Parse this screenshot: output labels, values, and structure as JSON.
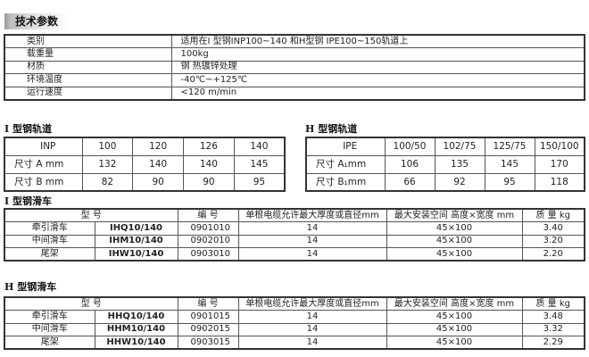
{
  "title": "技术参数",
  "specs": [
    {
      "label": "类别",
      "value": "适用在I 型钢INP100~140 和H型钢 IPE100~150轨道上"
    },
    {
      "label": "载重量",
      "value": "100kg"
    },
    {
      "label": "材质",
      "value": "钢      热镀锌处理"
    },
    {
      "label": "环境温度",
      "value": "-40℃~+125℃"
    },
    {
      "label": "运行速度",
      "value": "<120 m/min"
    }
  ],
  "i_rail": {
    "heading": "I 型钢轨道",
    "rows": [
      [
        "INP",
        "100",
        "120",
        "126",
        "140"
      ],
      [
        "尺寸  A mm",
        "132",
        "140",
        "140",
        "145"
      ],
      [
        "尺寸  B mm",
        "82",
        "90",
        "90",
        "95"
      ]
    ]
  },
  "h_rail": {
    "heading": "H 型钢轨道",
    "rows": [
      [
        "IPE",
        "100/50",
        "102/75",
        "125/75",
        "150/100"
      ],
      [
        "尺寸  A₁mm",
        "106",
        "135",
        "145",
        "170"
      ],
      [
        "尺寸  B₁mm",
        "66",
        "92",
        "95",
        "118"
      ]
    ]
  },
  "headers": {
    "type": "型          号",
    "code": "编    号",
    "cable": "单根电缆允许最大厚度或直径mm",
    "space": "最大安装空间 高度×宽度 mm",
    "mass": "质 量 kg"
  },
  "i_trolley": {
    "heading": "I 型钢滑车",
    "rows": [
      [
        "牵引滑车",
        "IHQ10/140",
        "0901010",
        "14",
        "45×100",
        "3.40"
      ],
      [
        "中间滑车",
        "IHM10/140",
        "0902010",
        "14",
        "45×100",
        "3.20"
      ],
      [
        "尾架",
        "IHW10/140",
        "0903010",
        "14",
        "45×100",
        "2.20"
      ]
    ]
  },
  "h_trolley": {
    "heading": "H 型钢滑车",
    "rows": [
      [
        "牵引滑车",
        "HHQ10/140",
        "0901015",
        "14",
        "45×100",
        "3.48"
      ],
      [
        "中间滑车",
        "HHM10/140",
        "0902015",
        "14",
        "45×100",
        "3.32"
      ],
      [
        "尾架",
        "HHW10/140",
        "0903015",
        "14",
        "45×100",
        "2.29"
      ]
    ]
  }
}
